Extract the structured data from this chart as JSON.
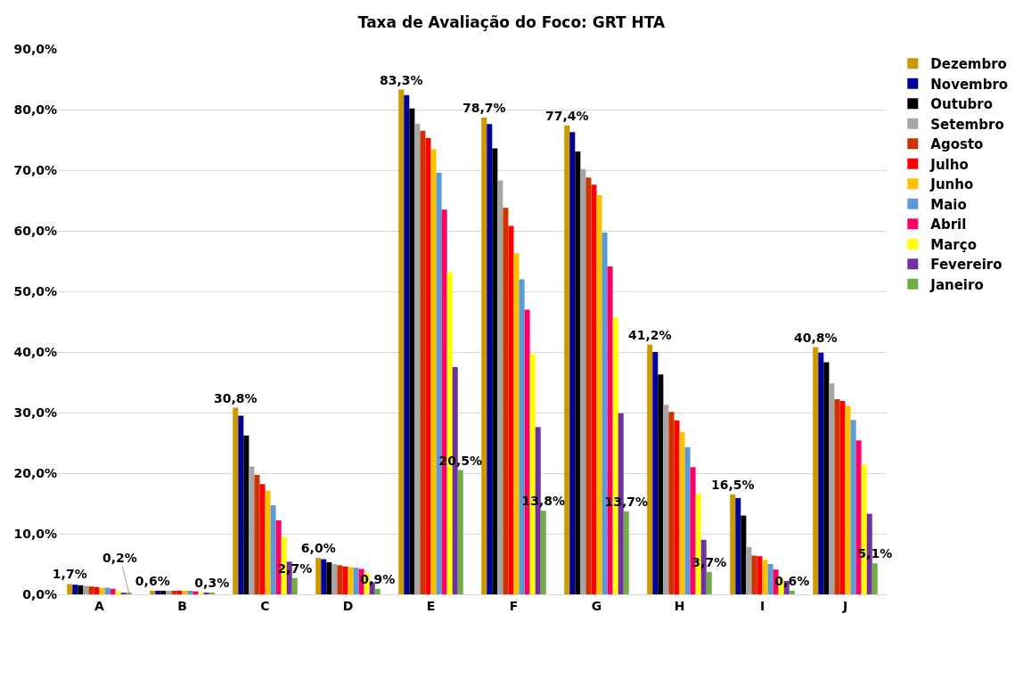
{
  "chart_data": {
    "type": "bar",
    "title": "Taxa de Avaliação do Foco: GRT HTA",
    "categories": [
      "A",
      "B",
      "C",
      "D",
      "E",
      "F",
      "G",
      "H",
      "I",
      "J"
    ],
    "ylim": [
      0,
      90
    ],
    "yticks": [
      {
        "value": 0,
        "label": "0,0%"
      },
      {
        "value": 10,
        "label": "10,0%"
      },
      {
        "value": 20,
        "label": "20,0%"
      },
      {
        "value": 30,
        "label": "30,0%"
      },
      {
        "value": 40,
        "label": "40,0%"
      },
      {
        "value": 50,
        "label": "50,0%"
      },
      {
        "value": 60,
        "label": "60,0%"
      },
      {
        "value": 70,
        "label": "70,0%"
      },
      {
        "value": 80,
        "label": "80,0%"
      },
      {
        "value": 90,
        "label": "90,0%"
      }
    ],
    "grid": "y",
    "legend": "right",
    "series": [
      {
        "name": "Dezembro",
        "color": "#cc9900",
        "values": [
          1.7,
          0.6,
          30.8,
          6.0,
          83.3,
          78.7,
          77.4,
          41.2,
          16.5,
          40.8
        ],
        "value_labels": [
          "1,7%",
          "0,6%",
          "30,8%",
          "6,0%",
          "83,3%",
          "78,7%",
          "77,4%",
          "41,2%",
          "16,5%",
          "40,8%"
        ]
      },
      {
        "name": "Novembro",
        "color": "#000099",
        "values": [
          1.6,
          0.6,
          29.5,
          5.8,
          82.4,
          77.6,
          76.3,
          40.0,
          15.9,
          39.9
        ]
      },
      {
        "name": "Outubro",
        "color": "#000000",
        "values": [
          1.5,
          0.6,
          26.2,
          5.3,
          80.2,
          73.6,
          73.1,
          36.3,
          13.0,
          38.3
        ]
      },
      {
        "name": "Setembro",
        "color": "#a6a6a6",
        "values": [
          1.4,
          0.6,
          21.1,
          5.0,
          77.7,
          68.3,
          70.2,
          31.3,
          7.8,
          34.8
        ]
      },
      {
        "name": "Agosto",
        "color": "#cc3300",
        "values": [
          1.3,
          0.6,
          19.7,
          4.8,
          76.5,
          63.8,
          68.8,
          30.1,
          6.4,
          32.2
        ]
      },
      {
        "name": "Julho",
        "color": "#ff0000",
        "values": [
          1.2,
          0.6,
          18.2,
          4.6,
          75.3,
          60.8,
          67.6,
          28.7,
          6.3,
          31.9
        ]
      },
      {
        "name": "Junho",
        "color": "#ffc000",
        "values": [
          1.1,
          0.6,
          17.1,
          4.5,
          73.5,
          56.3,
          65.9,
          26.8,
          5.7,
          31.1
        ]
      },
      {
        "name": "Maio",
        "color": "#5b9bd5",
        "values": [
          1.1,
          0.6,
          14.7,
          4.4,
          69.6,
          52.0,
          59.7,
          24.3,
          5.0,
          28.8
        ]
      },
      {
        "name": "Abril",
        "color": "#ff0066",
        "values": [
          0.9,
          0.5,
          12.2,
          4.2,
          63.5,
          47.0,
          54.1,
          21.0,
          4.1,
          25.4
        ]
      },
      {
        "name": "Março",
        "color": "#ffff00",
        "values": [
          0.5,
          0.3,
          9.5,
          3.5,
          53.2,
          39.6,
          45.7,
          16.6,
          2.5,
          21.4
        ]
      },
      {
        "name": "Fevereiro",
        "color": "#7030a0",
        "values": [
          0.2,
          0.3,
          5.4,
          2.0,
          37.5,
          27.6,
          29.9,
          9.0,
          2.2,
          13.3
        ]
      },
      {
        "name": "Janeiro",
        "color": "#70ad47",
        "values": [
          0.2,
          0.3,
          2.7,
          0.9,
          20.5,
          13.8,
          13.7,
          3.7,
          0.6,
          5.1
        ],
        "value_labels": [
          "0,2%",
          "0,3%",
          "2,7%",
          "0,9%",
          "20,5%",
          "13,8%",
          "13,7%",
          "3,7%",
          "0,6%",
          "5,1%"
        ]
      }
    ]
  }
}
